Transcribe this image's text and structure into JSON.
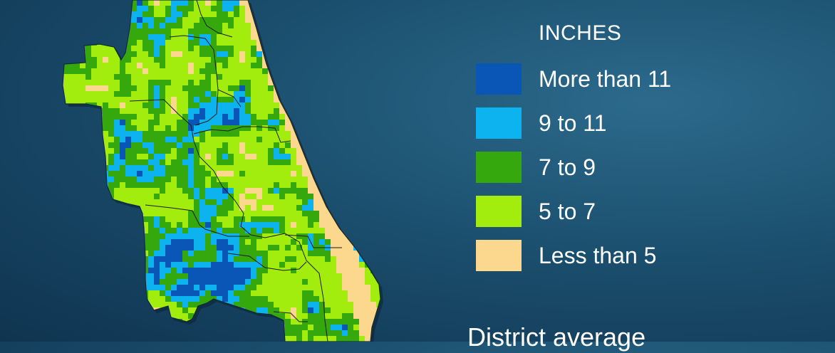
{
  "legend": {
    "title": "INCHES",
    "items": [
      {
        "label": "More than 11",
        "color": "#0a56b6"
      },
      {
        "label": "9 to 11",
        "color": "#0db3ef"
      },
      {
        "label": "7 to 9",
        "color": "#34a80d"
      },
      {
        "label": "5 to 7",
        "color": "#a2ec0e"
      },
      {
        "label": "Less than 5",
        "color": "#fcd88e"
      }
    ]
  },
  "footer": {
    "title": "District average"
  }
}
